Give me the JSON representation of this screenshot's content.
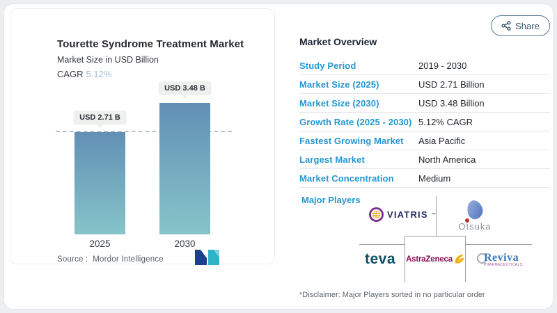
{
  "share": {
    "label": "Share",
    "icon": "share-nodes"
  },
  "chart": {
    "title": "Tourette Syndrome Treatment Market",
    "subtitle": "Market Size in USD Billion",
    "cagr_label": "CAGR",
    "cagr_value": "5.12%",
    "source_label": "Source :",
    "source_value": "Mordor Intelligence",
    "accent_color": "#9fbdd2"
  },
  "chart_data": {
    "type": "bar",
    "categories": [
      "2025",
      "2030"
    ],
    "values": [
      2.71,
      3.48
    ],
    "value_labels": [
      "USD 2.71 B",
      "USD 3.48 B"
    ],
    "title": "Tourette Syndrome Treatment Market",
    "ylabel": "Market Size in USD Billion",
    "ylim": [
      0,
      4.1
    ],
    "grid": false,
    "dashed_reference_line_at": 2.71,
    "bar_gradient_top": "#6290b5",
    "bar_gradient_bottom": "#86c4c9"
  },
  "overview": {
    "heading": "Market Overview",
    "rows": [
      {
        "label": "Study Period",
        "value": "2019 - 2030"
      },
      {
        "label": "Market Size (2025)",
        "value": "USD 2.71 Billion"
      },
      {
        "label": "Market Size (2030)",
        "value": "USD 3.48 Billion"
      },
      {
        "label": "Growth Rate (2025 - 2030)",
        "value": "5.12% CAGR"
      },
      {
        "label": "Fastest Growing Market",
        "value": "Asia Pacific"
      },
      {
        "label": "Largest Market",
        "value": "North America"
      },
      {
        "label": "Market Concentration",
        "value": "Medium"
      }
    ],
    "label_color": "#2497d3"
  },
  "major_players": {
    "label": "Major Players",
    "players": [
      {
        "name": "Viatris",
        "display": "VIATRIS",
        "tm": "™"
      },
      {
        "name": "Otsuka",
        "display": "Otsuka"
      },
      {
        "name": "Teva",
        "display": "teva"
      },
      {
        "name": "AstraZeneca",
        "display": "AstraZeneca"
      },
      {
        "name": "Reviva Pharmaceuticals",
        "display": "Reviva",
        "sub": "PHARMACEUTICALS"
      }
    ],
    "disclaimer": "*Disclaimer: Major Players sorted in no particular order"
  }
}
